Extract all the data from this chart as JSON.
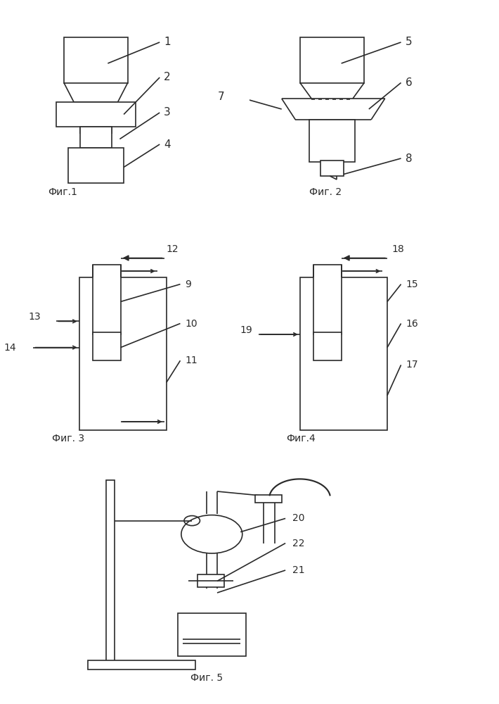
{
  "bg_color": "#ffffff",
  "lc": "#2a2a2a",
  "lw": 1.2,
  "fig1_label": "Фиг.1",
  "fig2_label": "Фиг. 2",
  "fig3_label": "Фиг. 3",
  "fig4_label": "Фиг.4",
  "fig5_label": "Фиг. 5",
  "fs_label": 10,
  "fs_num": 11,
  "fs_num_sm": 10
}
